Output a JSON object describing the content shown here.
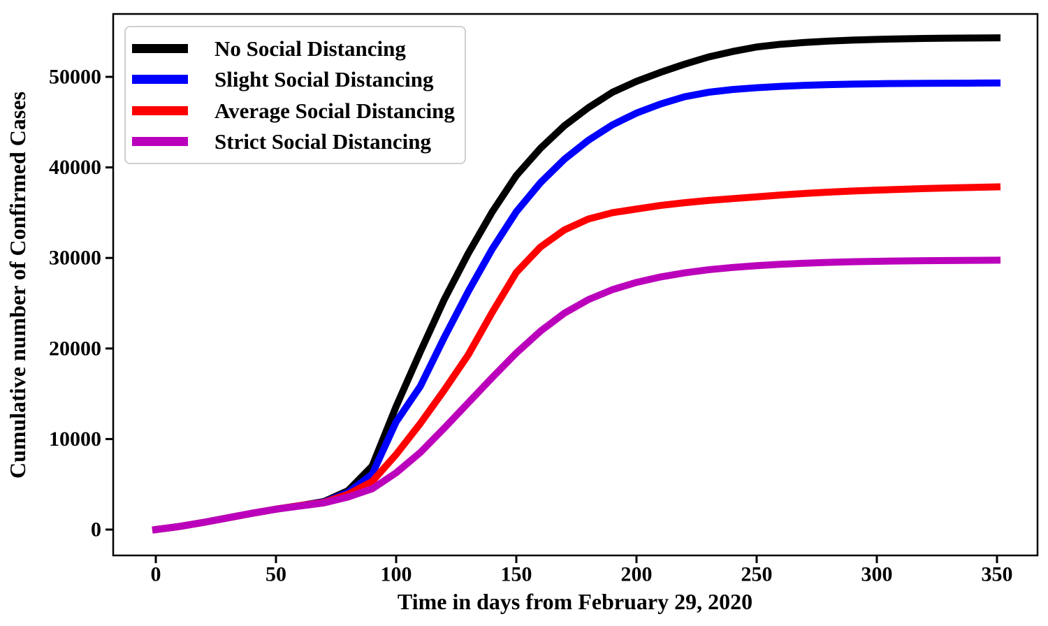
{
  "chart_data": {
    "type": "line",
    "title": "",
    "xlabel": "Time in days from February 29, 2020",
    "ylabel": "Cumulative number of Confirmed Cases",
    "x_ticks": [
      0,
      50,
      100,
      150,
      200,
      250,
      300,
      350
    ],
    "y_ticks": [
      0,
      10000,
      20000,
      30000,
      40000,
      50000
    ],
    "xlim": [
      0,
      350
    ],
    "ylim": [
      0,
      50000
    ],
    "grid": false,
    "legend_position": "upper left",
    "background_color": "#ffffff",
    "axis_color": "#000000",
    "x": [
      0,
      10,
      20,
      30,
      40,
      50,
      60,
      70,
      80,
      90,
      100,
      110,
      120,
      130,
      140,
      150,
      160,
      170,
      180,
      190,
      200,
      210,
      220,
      230,
      240,
      250,
      260,
      270,
      280,
      290,
      300,
      310,
      320,
      330,
      340,
      350
    ],
    "series": [
      {
        "name": "No Social Distancing",
        "color": "#000000",
        "values": [
          0,
          350,
          800,
          1300,
          1800,
          2250,
          2650,
          3100,
          4300,
          7000,
          13600,
          19600,
          25400,
          30500,
          35100,
          39100,
          42100,
          44600,
          46600,
          48300,
          49500,
          50500,
          51400,
          52200,
          52800,
          53300,
          53600,
          53800,
          53950,
          54060,
          54140,
          54200,
          54240,
          54270,
          54290,
          54310
        ]
      },
      {
        "name": "Slight Social Distancing",
        "color": "#0000ff",
        "values": [
          0,
          350,
          800,
          1300,
          1800,
          2250,
          2650,
          3050,
          4100,
          6100,
          11900,
          15800,
          21200,
          26300,
          31000,
          35100,
          38300,
          40900,
          43000,
          44700,
          46000,
          47000,
          47800,
          48300,
          48600,
          48800,
          48950,
          49060,
          49140,
          49200,
          49240,
          49270,
          49290,
          49300,
          49310,
          49320
        ]
      },
      {
        "name": "Average Social Distancing",
        "color": "#ff0000",
        "values": [
          0,
          350,
          800,
          1300,
          1800,
          2250,
          2650,
          3000,
          3900,
          5300,
          8300,
          11700,
          15400,
          19300,
          24000,
          28400,
          31200,
          33100,
          34300,
          35000,
          35400,
          35800,
          36100,
          36350,
          36550,
          36750,
          36950,
          37120,
          37270,
          37390,
          37490,
          37580,
          37660,
          37730,
          37790,
          37850
        ]
      },
      {
        "name": "Strict Social Distancing",
        "color": "#bb00bb",
        "values": [
          0,
          350,
          800,
          1300,
          1800,
          2250,
          2600,
          2950,
          3600,
          4500,
          6270,
          8500,
          11200,
          14000,
          16800,
          19500,
          21900,
          23900,
          25400,
          26500,
          27300,
          27900,
          28350,
          28700,
          28950,
          29150,
          29300,
          29420,
          29510,
          29580,
          29630,
          29670,
          29700,
          29720,
          29735,
          29750
        ]
      }
    ]
  }
}
